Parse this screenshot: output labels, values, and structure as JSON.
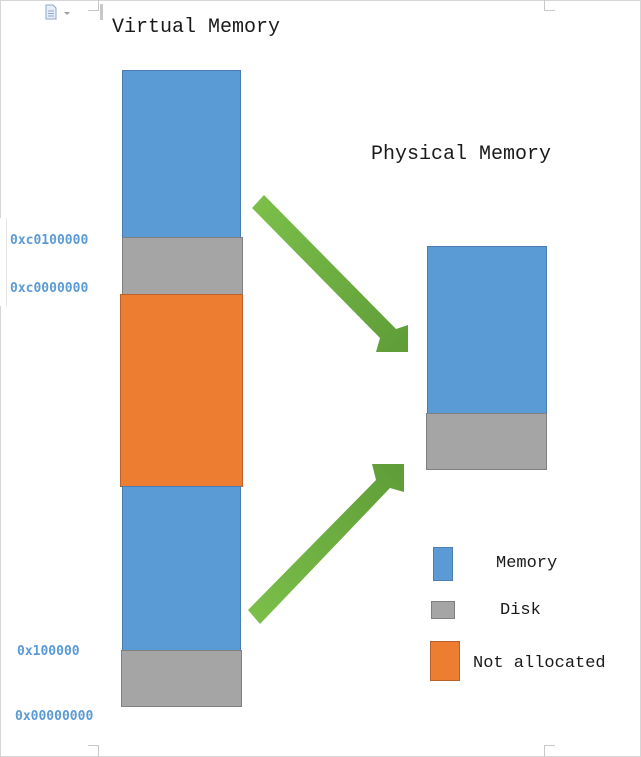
{
  "titles": {
    "virtual": "Virtual Memory",
    "physical": "Physical Memory"
  },
  "addresses": {
    "a1": "0xc0100000",
    "a2": "0xc0000000",
    "a3": "0x100000",
    "a4": "0x00000000"
  },
  "legend": {
    "memory": "Memory",
    "disk": "Disk",
    "not_allocated": "Not allocated"
  },
  "colors": {
    "memory": "#5b9bd5",
    "disk": "#a5a5a5",
    "not_allocated": "#ed7d31",
    "arrow": "#70ad47",
    "address_text": "#5b9bd5"
  },
  "icons": {
    "toolbar": "document-icon"
  }
}
